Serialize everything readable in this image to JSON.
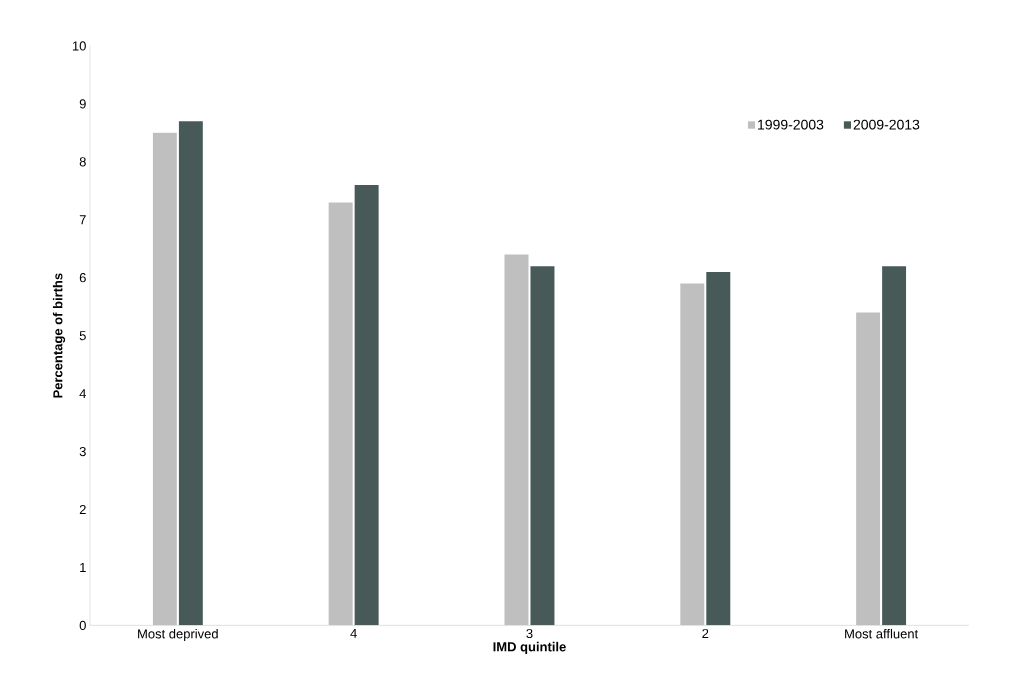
{
  "chart_data": {
    "type": "bar",
    "xlabel": "IMD quintile",
    "ylabel": "Percentage of births",
    "categories": [
      "Most deprived",
      "4",
      "3",
      "2",
      "Most affluent"
    ],
    "series": [
      {
        "name": "1999-2003",
        "color": "#bfbfbf",
        "values": [
          8.5,
          7.3,
          6.4,
          5.9,
          5.4
        ]
      },
      {
        "name": "2009-2013",
        "color": "#475a58",
        "values": [
          8.7,
          7.6,
          6.2,
          6.1,
          6.2
        ]
      }
    ],
    "ylim": [
      0,
      10
    ],
    "yticks": [
      0,
      1,
      2,
      3,
      4,
      5,
      6,
      7,
      8,
      9,
      10
    ],
    "grid": false,
    "legend": "top right"
  }
}
